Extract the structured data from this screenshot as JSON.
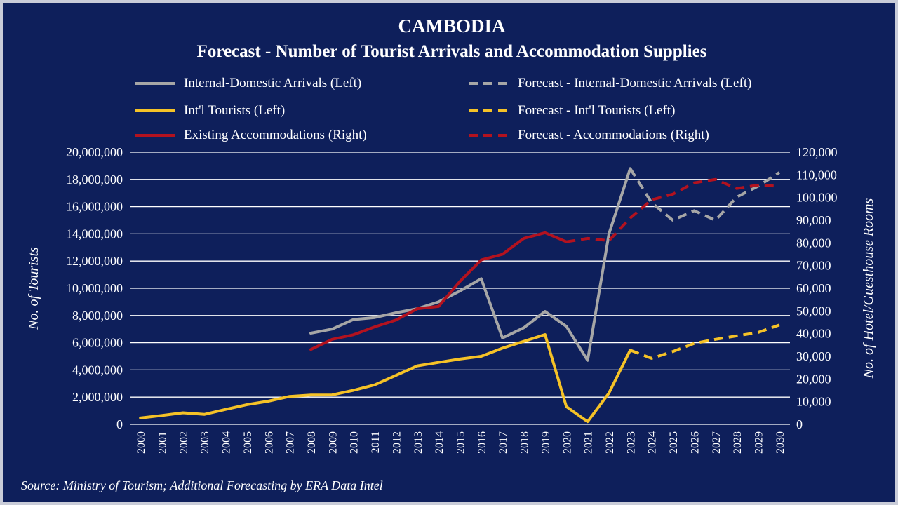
{
  "title": "CAMBODIA",
  "subtitle": "Forecast - Number of Tourist Arrivals and Accommodation Supplies",
  "source": "Source: Ministry of Tourism; Additional Forecasting by ERA Data Intel",
  "colors": {
    "background": "#0e1f5b",
    "domestic": "#a6a6a6",
    "intl": "#f5c227",
    "accommodations": "#b3121f",
    "grid": "#ffffff"
  },
  "legend": {
    "placement": "top",
    "items": [
      {
        "label": "Internal-Domestic Arrivals (Left)",
        "series": "domestic",
        "dashed": false
      },
      {
        "label": "Forecast - Internal-Domestic Arrivals (Left)",
        "series": "domestic",
        "dashed": true
      },
      {
        "label": "Int'l Tourists (Left)",
        "series": "intl",
        "dashed": false
      },
      {
        "label": "Forecast - Int'l Tourists (Left)",
        "series": "intl",
        "dashed": true
      },
      {
        "label": "Existing Accommodations (Right)",
        "series": "accommodations",
        "dashed": false
      },
      {
        "label": "Forecast - Accommodations (Right)",
        "series": "accommodations",
        "dashed": true
      }
    ]
  },
  "chart_data": {
    "type": "line",
    "ylabel_left": "No. of Tourists",
    "ylabel_right": "No. of Hotel/Guesthouse Rooms",
    "ylim_left": [
      0,
      20000000
    ],
    "ylim_right": [
      0,
      120000
    ],
    "yticks_left": [
      "0",
      "2,000,000",
      "4,000,000",
      "6,000,000",
      "8,000,000",
      "10,000,000",
      "12,000,000",
      "14,000,000",
      "16,000,000",
      "18,000,000",
      "20,000,000"
    ],
    "yticks_right": [
      "0",
      "10,000",
      "20,000",
      "30,000",
      "40,000",
      "50,000",
      "60,000",
      "70,000",
      "80,000",
      "90,000",
      "100,000",
      "110,000",
      "120,000"
    ],
    "x": [
      "2000",
      "2001",
      "2002",
      "2003",
      "2004",
      "2005",
      "2006",
      "2007",
      "2008",
      "2009",
      "2010",
      "2011",
      "2012",
      "2013",
      "2014",
      "2015",
      "2016",
      "2017",
      "2018",
      "2019",
      "2020",
      "2021",
      "2022",
      "2023",
      "2024",
      "2025",
      "2026",
      "2027",
      "2028",
      "2029",
      "2030"
    ],
    "grid": true,
    "series": [
      {
        "name": "Internal-Domestic Arrivals (Left)",
        "key": "domestic",
        "axis": "left",
        "dashed": false,
        "points": [
          [
            "2008",
            6700000
          ],
          [
            "2009",
            7000000
          ],
          [
            "2010",
            7700000
          ],
          [
            "2011",
            7850000
          ],
          [
            "2012",
            8200000
          ],
          [
            "2013",
            8500000
          ],
          [
            "2014",
            9000000
          ],
          [
            "2015",
            9800000
          ],
          [
            "2016",
            10700000
          ],
          [
            "2017",
            6350000
          ],
          [
            "2018",
            7100000
          ],
          [
            "2019",
            8300000
          ],
          [
            "2020",
            7200000
          ],
          [
            "2021",
            4700000
          ],
          [
            "2022",
            14000000
          ],
          [
            "2023",
            18800000
          ]
        ]
      },
      {
        "name": "Forecast - Internal-Domestic Arrivals (Left)",
        "key": "domestic",
        "axis": "left",
        "dashed": true,
        "points": [
          [
            "2023",
            18800000
          ],
          [
            "2024",
            16300000
          ],
          [
            "2025",
            15000000
          ],
          [
            "2026",
            15700000
          ],
          [
            "2027",
            15000000
          ],
          [
            "2028",
            16700000
          ],
          [
            "2029",
            17500000
          ],
          [
            "2030",
            18500000
          ]
        ]
      },
      {
        "name": "Int'l Tourists (Left)",
        "key": "intl",
        "axis": "left",
        "dashed": false,
        "points": [
          [
            "2000",
            470000
          ],
          [
            "2001",
            650000
          ],
          [
            "2002",
            850000
          ],
          [
            "2003",
            730000
          ],
          [
            "2004",
            1100000
          ],
          [
            "2005",
            1450000
          ],
          [
            "2006",
            1700000
          ],
          [
            "2007",
            2050000
          ],
          [
            "2008",
            2150000
          ],
          [
            "2009",
            2160000
          ],
          [
            "2010",
            2500000
          ],
          [
            "2011",
            2900000
          ],
          [
            "2012",
            3600000
          ],
          [
            "2013",
            4300000
          ],
          [
            "2014",
            4550000
          ],
          [
            "2015",
            4800000
          ],
          [
            "2016",
            5000000
          ],
          [
            "2017",
            5600000
          ],
          [
            "2018",
            6100000
          ],
          [
            "2019",
            6600000
          ],
          [
            "2020",
            1300000
          ],
          [
            "2021",
            200000
          ],
          [
            "2022",
            2300000
          ],
          [
            "2023",
            5450000
          ]
        ]
      },
      {
        "name": "Forecast - Int'l Tourists (Left)",
        "key": "intl",
        "axis": "left",
        "dashed": true,
        "points": [
          [
            "2023",
            5450000
          ],
          [
            "2024",
            4850000
          ],
          [
            "2025",
            5350000
          ],
          [
            "2026",
            5950000
          ],
          [
            "2027",
            6250000
          ],
          [
            "2028",
            6500000
          ],
          [
            "2029",
            6750000
          ],
          [
            "2030",
            7300000
          ]
        ]
      },
      {
        "name": "Existing Accommodations (Right)",
        "key": "accommodations",
        "axis": "right",
        "dashed": false,
        "points": [
          [
            "2008",
            33000
          ],
          [
            "2009",
            37500
          ],
          [
            "2010",
            39500
          ],
          [
            "2011",
            43000
          ],
          [
            "2012",
            46000
          ],
          [
            "2013",
            51000
          ],
          [
            "2014",
            52000
          ],
          [
            "2015",
            63000
          ],
          [
            "2016",
            72500
          ],
          [
            "2017",
            75000
          ],
          [
            "2018",
            82000
          ],
          [
            "2019",
            84500
          ],
          [
            "2020",
            80500
          ]
        ]
      },
      {
        "name": "Forecast - Accommodations (Right)",
        "key": "accommodations",
        "axis": "right",
        "dashed": true,
        "points": [
          [
            "2020",
            80500
          ],
          [
            "2021",
            82000
          ],
          [
            "2022",
            81000
          ],
          [
            "2023",
            91000
          ],
          [
            "2024",
            99000
          ],
          [
            "2025",
            101500
          ],
          [
            "2026",
            106500
          ],
          [
            "2027",
            108000
          ],
          [
            "2028",
            104000
          ],
          [
            "2029",
            105500
          ],
          [
            "2030",
            105000
          ]
        ]
      }
    ]
  }
}
